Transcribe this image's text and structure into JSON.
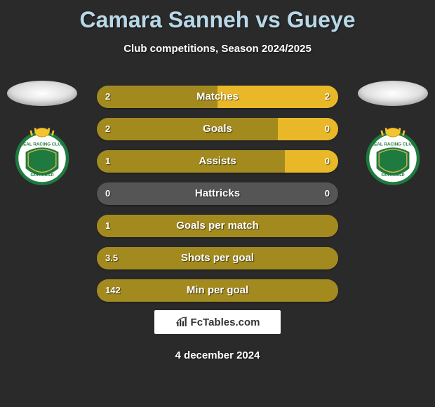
{
  "title": "Camara Sanneh vs Gueye",
  "subtitle": "Club competitions, Season 2024/2025",
  "date": "4 december 2024",
  "brand": "FcTables.com",
  "colors": {
    "title": "#b8d8e8",
    "p1_bar": "#a38a1f",
    "p2_bar": "#e9b828",
    "neutral_bar": "#555555",
    "bg": "#2a2a2a"
  },
  "stats": [
    {
      "label": "Matches",
      "v1": "2",
      "v2": "2",
      "w1": 50,
      "w2": 50
    },
    {
      "label": "Goals",
      "v1": "2",
      "v2": "0",
      "w1": 75,
      "w2": 25
    },
    {
      "label": "Assists",
      "v1": "1",
      "v2": "0",
      "w1": 78,
      "w2": 22
    },
    {
      "label": "Hattricks",
      "v1": "0",
      "v2": "0",
      "w1": 0,
      "w2": 0
    },
    {
      "label": "Goals per match",
      "v1": "1",
      "v2": "",
      "w1": 100,
      "w2": 0
    },
    {
      "label": "Shots per goal",
      "v1": "3.5",
      "v2": "",
      "w1": 100,
      "w2": 0
    },
    {
      "label": "Min per goal",
      "v1": "142",
      "v2": "",
      "w1": 100,
      "w2": 0
    }
  ]
}
